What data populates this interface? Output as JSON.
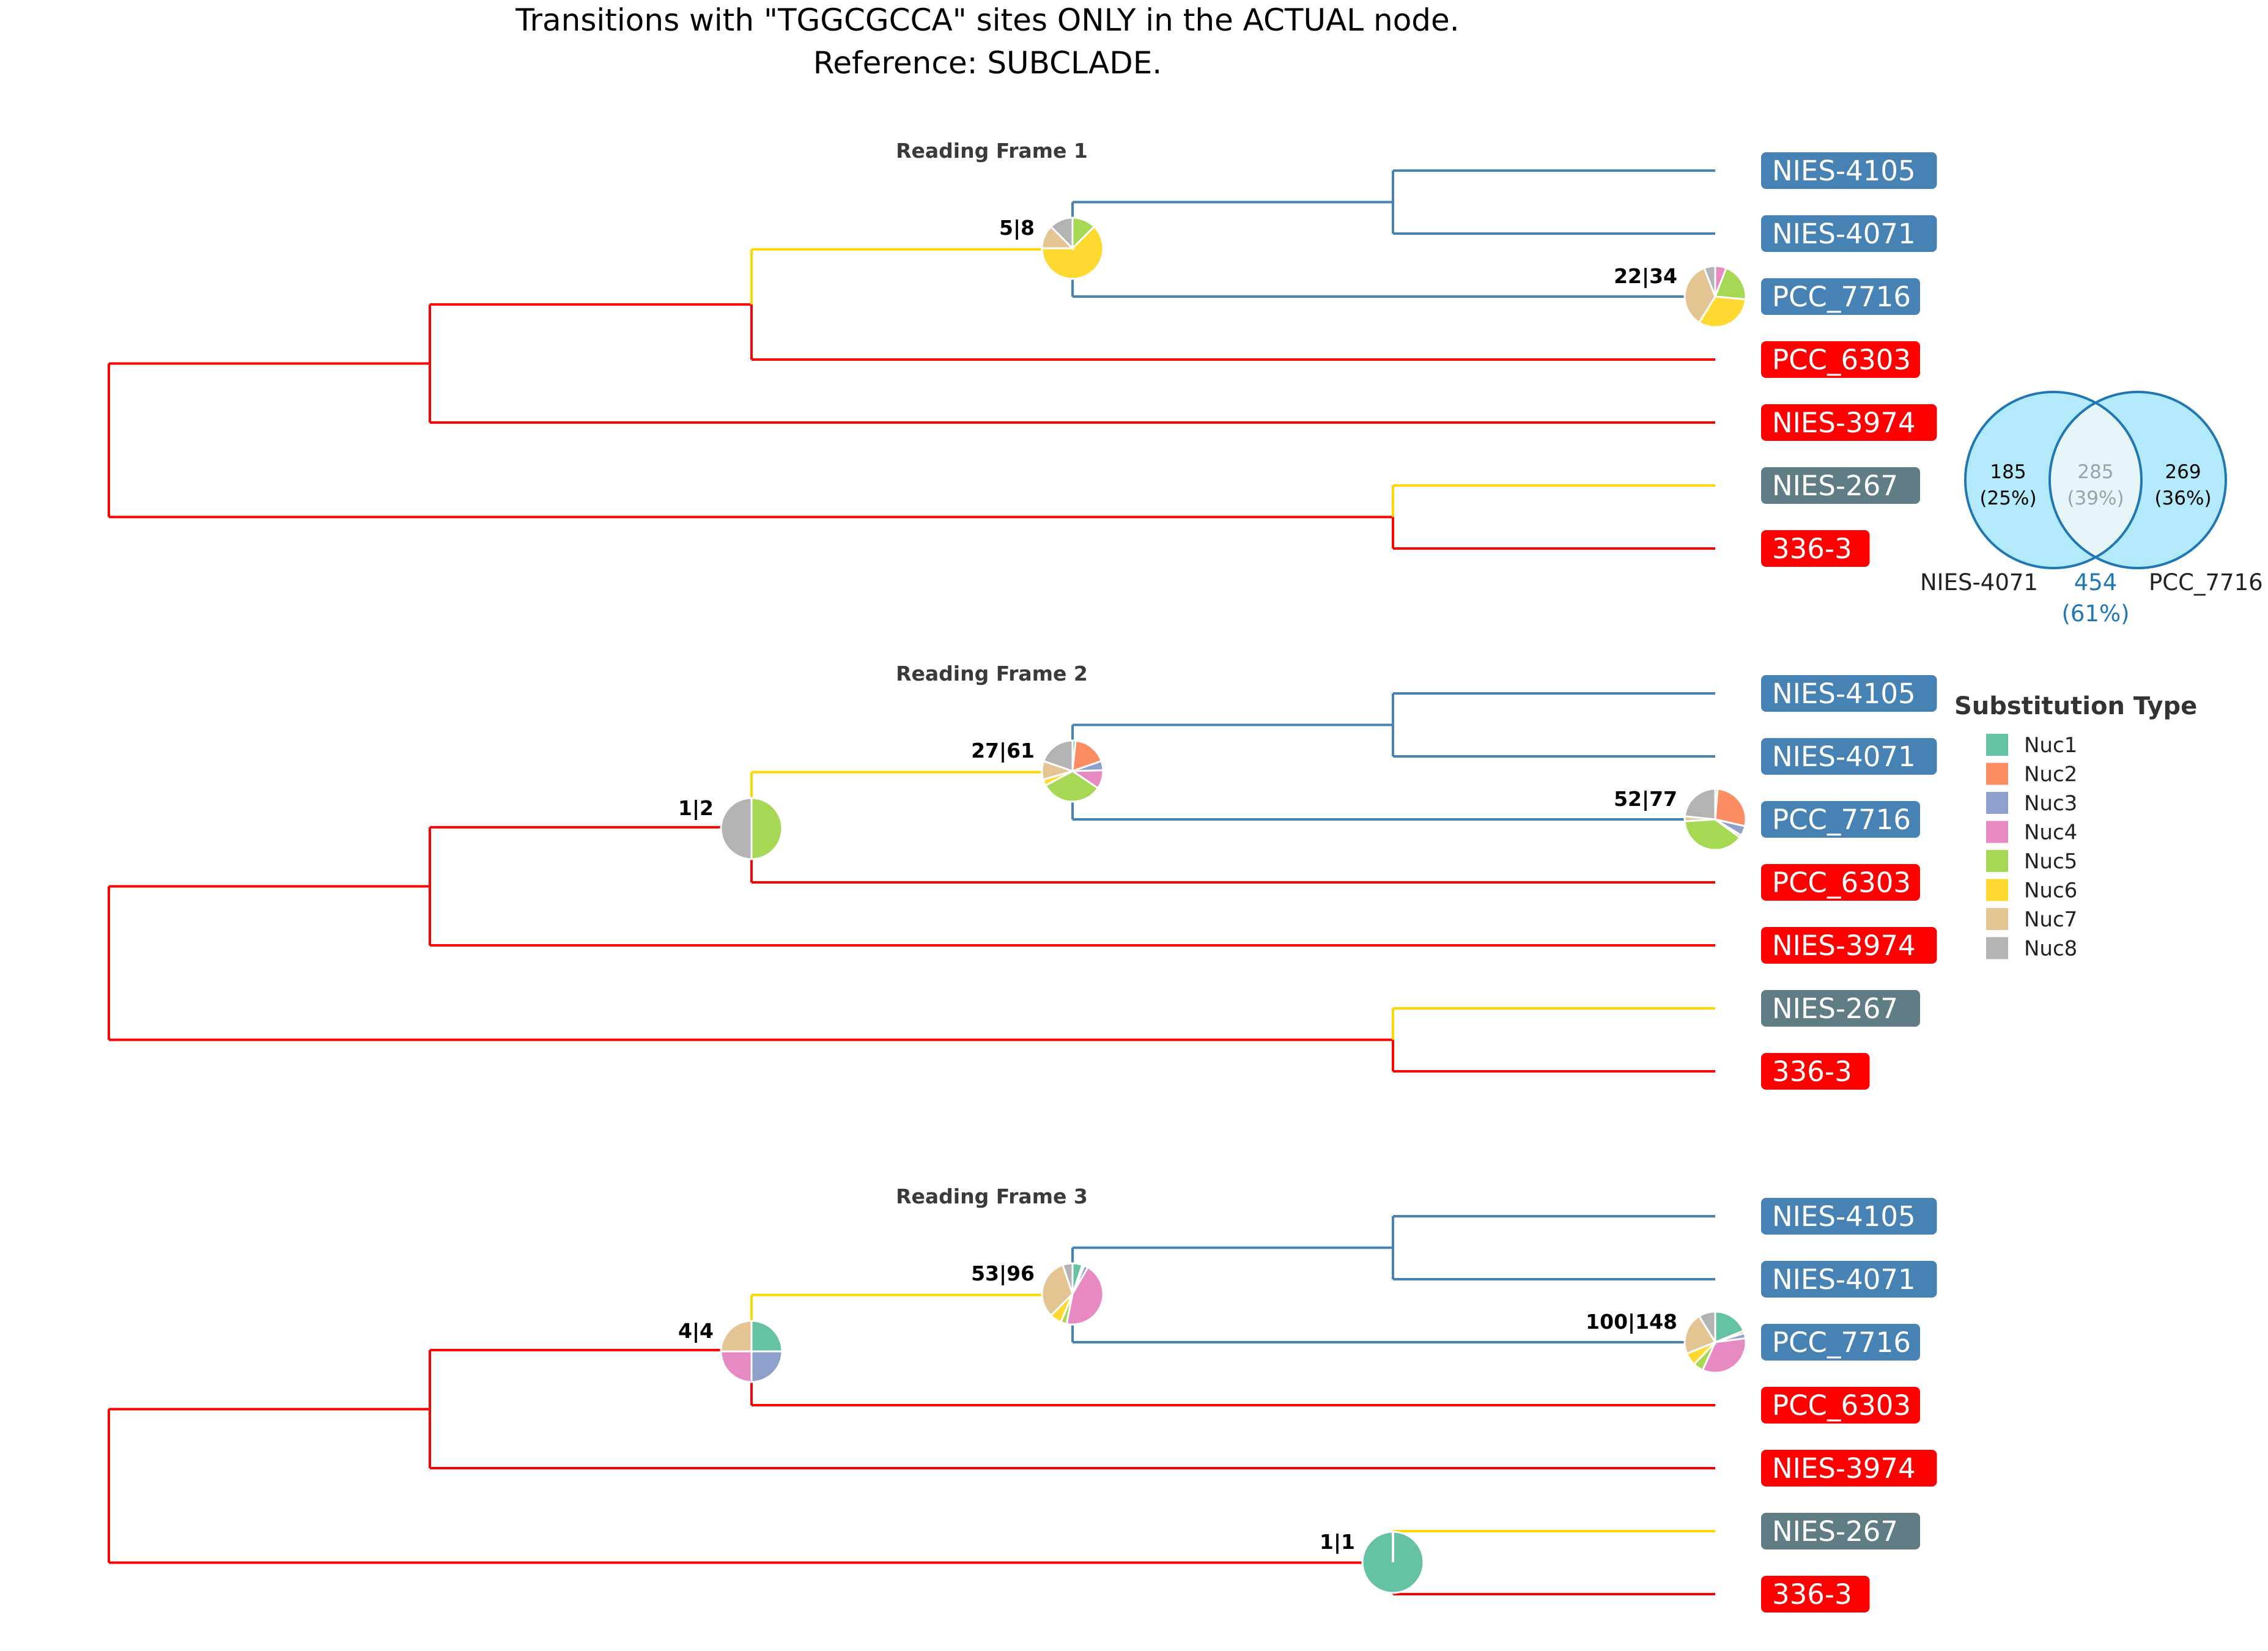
{
  "title": {
    "line1": "Transitions with \"TGGCGCCA\" sites ONLY in the ACTUAL node.",
    "line2": "Reference: SUBCLADE."
  },
  "colors": {
    "red_branch": "#ff0000",
    "blue_branch": "#4682b4",
    "yellow_branch": "#ffd700",
    "tip_blue": "#4682b4",
    "tip_red": "#ff0000",
    "tip_gray": "#607d85"
  },
  "legend": {
    "title": "Substitution Type",
    "items": [
      {
        "label": "Nuc1",
        "color": "#66c2a5"
      },
      {
        "label": "Nuc2",
        "color": "#fc8d62"
      },
      {
        "label": "Nuc3",
        "color": "#8da0cb"
      },
      {
        "label": "Nuc4",
        "color": "#e78ac3"
      },
      {
        "label": "Nuc5",
        "color": "#a6d854"
      },
      {
        "label": "Nuc6",
        "color": "#ffd92f"
      },
      {
        "label": "Nuc7",
        "color": "#e5c494"
      },
      {
        "label": "Nuc8",
        "color": "#b3b3b3"
      }
    ]
  },
  "venn": {
    "left_name": "NIES-4071",
    "right_name": "PCC_7716",
    "left_only": "185",
    "left_only_pct": "(25%)",
    "shared": "285",
    "shared_pct": "(39%)",
    "right_only": "269",
    "right_only_pct": "(36%)",
    "union": "454",
    "union_pct": "(61%)",
    "fill": "#aee8fb",
    "stroke": "#1f78b4"
  },
  "tips": [
    {
      "label": "NIES-4105",
      "color": "blue"
    },
    {
      "label": "NIES-4071",
      "color": "blue"
    },
    {
      "label": "PCC_7716",
      "color": "blue"
    },
    {
      "label": "PCC_6303",
      "color": "red"
    },
    {
      "label": "NIES-3974",
      "color": "red"
    },
    {
      "label": "NIES-267",
      "color": "gray"
    },
    {
      "label": "336-3",
      "color": "red"
    }
  ],
  "panels": [
    {
      "title": "Reading Frame 1",
      "nodes": [
        {
          "node": "clade_4105_4071_7716",
          "label": "5|8",
          "pie": [
            0,
            0,
            0,
            0,
            1,
            5,
            1,
            1
          ]
        },
        {
          "node": "pcc_7716_tip",
          "label": "22|34",
          "pie": [
            0,
            0,
            0,
            2,
            7,
            11,
            12,
            2
          ]
        }
      ]
    },
    {
      "title": "Reading Frame 2",
      "nodes": [
        {
          "node": "clade_with_6303",
          "label": "1|2",
          "pie": [
            0,
            0,
            0,
            0,
            1,
            0,
            0,
            1
          ]
        },
        {
          "node": "clade_4105_4071_7716",
          "label": "27|61",
          "pie": [
            1,
            11,
            3,
            6,
            20,
            2,
            6,
            12
          ]
        },
        {
          "node": "pcc_7716_tip",
          "label": "52|77",
          "pie": [
            1,
            21,
            4,
            1,
            30,
            0,
            2,
            18
          ]
        }
      ]
    },
    {
      "title": "Reading Frame 3",
      "nodes": [
        {
          "node": "clade_with_6303",
          "label": "4|4",
          "pie": [
            1,
            0,
            1,
            1,
            0,
            0,
            1,
            0
          ]
        },
        {
          "node": "clade_4105_4071_7716",
          "label": "53|96",
          "pie": [
            5,
            1,
            2,
            43,
            3,
            6,
            31,
            5
          ]
        },
        {
          "node": "pcc_7716_tip",
          "label": "100|148",
          "pie": [
            28,
            2,
            4,
            50,
            8,
            10,
            33,
            13
          ]
        },
        {
          "node": "clade_267_336",
          "label": "1|1",
          "pie": [
            1,
            0,
            0,
            0,
            0,
            0,
            0,
            0
          ]
        }
      ]
    }
  ]
}
